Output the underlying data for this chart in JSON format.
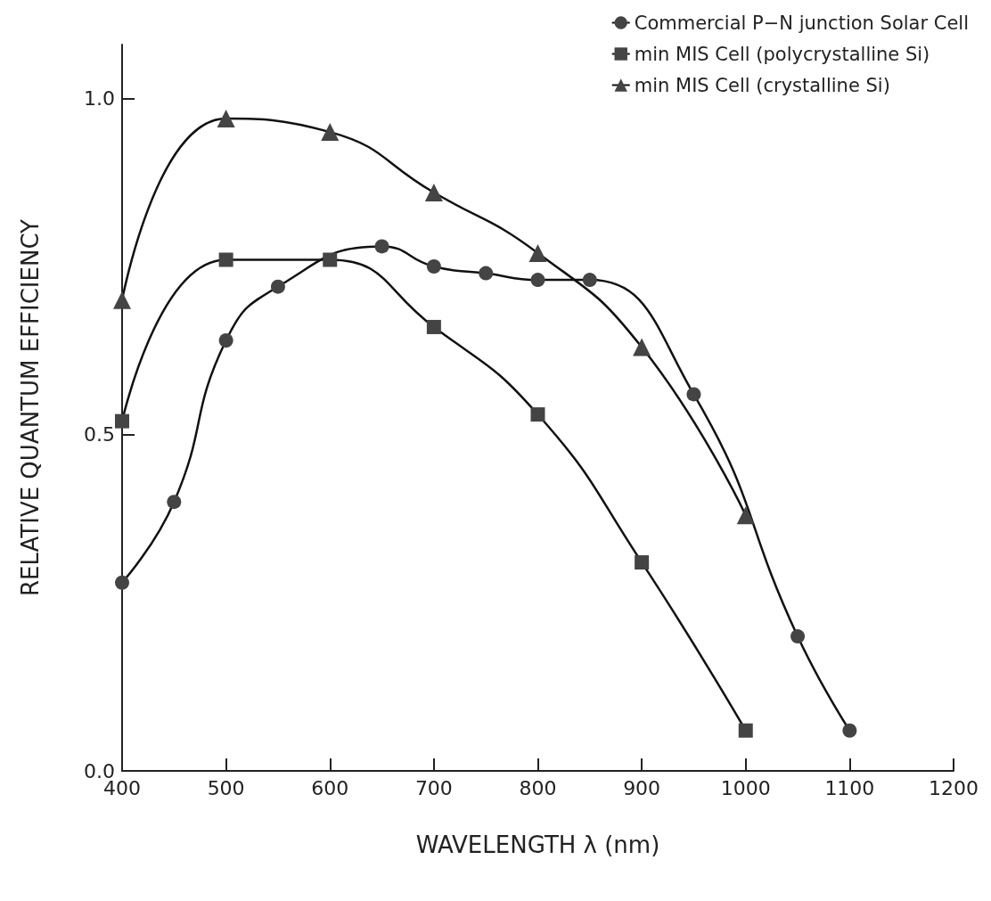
{
  "chart_data": {
    "type": "line",
    "xlabel": "WAVELENGTH λ (nm)",
    "ylabel": "RELATIVE QUANTUM EFFICIENCY",
    "xlim": [
      400,
      1200
    ],
    "xticks": [
      400,
      500,
      600,
      700,
      800,
      900,
      1000,
      1100,
      1200
    ],
    "ylim": [
      0,
      1.08
    ],
    "yticks": [
      {
        "value": 0,
        "label": "0.0"
      },
      {
        "value": 0.5,
        "label": "0.5"
      },
      {
        "value": 1,
        "label": "1.0"
      }
    ],
    "grid": false,
    "legend": "top right",
    "line_style": "solid",
    "series": [
      {
        "name": "Commercial P−N junction Solar Cell",
        "color": "#444444",
        "marker": "circle",
        "x": [
          400,
          450,
          500,
          550,
          650,
          700,
          750,
          800,
          850,
          950,
          1050,
          1100
        ],
        "values": [
          0.28,
          0.4,
          0.64,
          0.72,
          0.78,
          0.75,
          0.74,
          0.73,
          0.73,
          0.56,
          0.2,
          0.06
        ]
      },
      {
        "name": "min MIS Cell (polycrystalline Si)",
        "color": "#444444",
        "marker": "square",
        "x": [
          400,
          500,
          600,
          700,
          800,
          900,
          1000
        ],
        "values": [
          0.52,
          0.76,
          0.76,
          0.66,
          0.53,
          0.31,
          0.06
        ]
      },
      {
        "name": "min MIS Cell (crystalline Si)",
        "color": "#444444",
        "marker": "triangle",
        "x": [
          400,
          500,
          600,
          700,
          800,
          900,
          1000
        ],
        "values": [
          0.7,
          0.97,
          0.95,
          0.86,
          0.77,
          0.63,
          0.38
        ]
      }
    ]
  }
}
